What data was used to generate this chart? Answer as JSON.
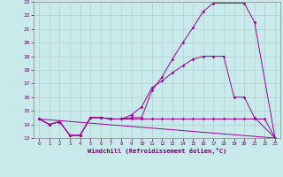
{
  "background_color": "#c8eaea",
  "grid_color": "#b0c8c8",
  "line_color": "#990099",
  "xlim": [
    -0.5,
    23.5
  ],
  "ylim": [
    13,
    23
  ],
  "xlabel": "Windchill (Refroidissement éolien,°C)",
  "yticks": [
    13,
    14,
    15,
    16,
    17,
    18,
    19,
    20,
    21,
    22,
    23
  ],
  "xticks": [
    0,
    1,
    2,
    3,
    4,
    5,
    6,
    7,
    8,
    9,
    10,
    11,
    12,
    13,
    14,
    15,
    16,
    17,
    18,
    19,
    20,
    21,
    22,
    23
  ],
  "line1_x": [
    0,
    1,
    2,
    3,
    4,
    5,
    6,
    7,
    8,
    9,
    10,
    11,
    12,
    13,
    14,
    15,
    16,
    17,
    20,
    21,
    23
  ],
  "line1_y": [
    14.4,
    14.0,
    14.2,
    13.2,
    13.2,
    14.5,
    14.5,
    14.4,
    14.4,
    14.5,
    14.5,
    16.5,
    17.5,
    18.8,
    20.0,
    21.1,
    22.3,
    22.9,
    22.9,
    21.5,
    13.0
  ],
  "line2_x": [
    0,
    1,
    2,
    3,
    4,
    5,
    6,
    7,
    8,
    9,
    10,
    11,
    12,
    13,
    14,
    15,
    16,
    17,
    18,
    19,
    20,
    21,
    23
  ],
  "line2_y": [
    14.4,
    14.0,
    14.2,
    13.2,
    13.2,
    14.5,
    14.5,
    14.4,
    14.4,
    14.7,
    15.3,
    16.7,
    17.2,
    17.8,
    18.3,
    18.8,
    19.0,
    19.0,
    19.0,
    16.0,
    16.0,
    14.5,
    13.0
  ],
  "line3_x": [
    0,
    1,
    2,
    3,
    4,
    5,
    6,
    7,
    8,
    9,
    10,
    11,
    12,
    13,
    14,
    15,
    16,
    17,
    18,
    19,
    20,
    21,
    22,
    23
  ],
  "line3_y": [
    14.4,
    14.0,
    14.2,
    13.2,
    13.2,
    14.5,
    14.5,
    14.4,
    14.4,
    14.4,
    14.4,
    14.4,
    14.4,
    14.4,
    14.4,
    14.4,
    14.4,
    14.4,
    14.4,
    14.4,
    14.4,
    14.4,
    14.4,
    13.0
  ],
  "line4_x": [
    0,
    23
  ],
  "line4_y": [
    14.4,
    13.0
  ]
}
